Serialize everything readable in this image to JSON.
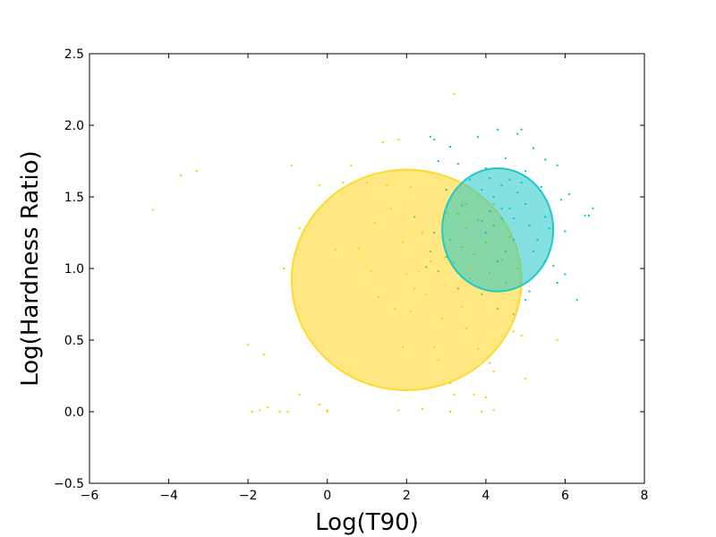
{
  "chart_data": {
    "type": "scatter",
    "xlabel": "Log(T90)",
    "ylabel": "Log(Hardness Ratio)",
    "xlim": [
      -6,
      8
    ],
    "ylim": [
      -0.5,
      2.5
    ],
    "xticks": [
      -6,
      -4,
      -2,
      0,
      2,
      4,
      6,
      8
    ],
    "xtick_labels": [
      "−6",
      "−4",
      "−2",
      "0",
      "2",
      "4",
      "6",
      "8"
    ],
    "yticks": [
      -0.5,
      0.0,
      0.5,
      1.0,
      1.5,
      2.0,
      2.5
    ],
    "ytick_labels": [
      "−0.5",
      "0.0",
      "0.5",
      "1.0",
      "1.5",
      "2.0",
      "2.5"
    ],
    "grid": false,
    "colors": {
      "yellow": "#ffcc00",
      "cyan": "#00c8c8",
      "green": "#66cc44",
      "yellow_fill": "#ffd92f",
      "cyan_fill": "#20c8c8"
    },
    "ellipses": [
      {
        "name": "yellow-cluster",
        "color_key": "yellow_fill",
        "cx": 2.0,
        "cy": 0.92,
        "rx": 2.9,
        "ry": 0.77,
        "opacity": 0.6
      },
      {
        "name": "cyan-cluster",
        "color_key": "cyan_fill",
        "cx": 4.3,
        "cy": 1.27,
        "rx": 1.4,
        "ry": 0.43,
        "opacity": 0.55
      }
    ],
    "series": [
      {
        "color_key": "yellow",
        "points": [
          [
            -4.4,
            1.41
          ],
          [
            -3.7,
            1.65
          ],
          [
            -3.3,
            1.68
          ],
          [
            -2.0,
            0.47
          ],
          [
            -1.9,
            0.0
          ],
          [
            -1.7,
            0.01
          ],
          [
            -1.6,
            0.4
          ],
          [
            -1.5,
            0.03
          ],
          [
            -1.2,
            0.0
          ],
          [
            -1.1,
            1.0
          ],
          [
            -1.0,
            0.0
          ],
          [
            -0.9,
            1.72
          ],
          [
            -0.8,
            1.1
          ],
          [
            -0.7,
            0.12
          ],
          [
            -0.7,
            1.28
          ],
          [
            -0.2,
            0.05
          ],
          [
            -0.2,
            1.58
          ],
          [
            0.0,
            0.01
          ],
          [
            0.0,
            0.0
          ],
          [
            0.2,
            1.13
          ],
          [
            0.4,
            1.6
          ],
          [
            0.6,
            1.72
          ],
          [
            0.8,
            1.14
          ],
          [
            1.0,
            1.6
          ],
          [
            1.1,
            0.98
          ],
          [
            1.2,
            1.32
          ],
          [
            1.3,
            0.8
          ],
          [
            1.4,
            1.88
          ],
          [
            1.5,
            1.58
          ],
          [
            1.6,
            1.42
          ],
          [
            1.7,
            0.72
          ],
          [
            1.8,
            0.01
          ],
          [
            1.8,
            1.9
          ],
          [
            1.9,
            1.18
          ],
          [
            1.9,
            0.45
          ],
          [
            2.0,
            0.96
          ],
          [
            2.1,
            0.7
          ],
          [
            2.1,
            1.57
          ],
          [
            2.2,
            0.86
          ],
          [
            2.3,
            0.98
          ],
          [
            2.4,
            1.25
          ],
          [
            2.4,
            0.02
          ],
          [
            2.5,
            0.82
          ],
          [
            2.6,
            1.05
          ],
          [
            2.7,
            0.45
          ],
          [
            2.8,
            0.36
          ],
          [
            2.9,
            0.65
          ],
          [
            3.1,
            0.2
          ],
          [
            3.1,
            0.0
          ],
          [
            3.2,
            0.12
          ],
          [
            3.2,
            2.22
          ],
          [
            3.4,
            0.73
          ],
          [
            3.5,
            0.58
          ],
          [
            3.6,
            1.0
          ],
          [
            3.7,
            0.12
          ],
          [
            3.8,
            0.44
          ],
          [
            3.9,
            0.0
          ],
          [
            4.0,
            0.1
          ],
          [
            4.1,
            0.34
          ],
          [
            4.2,
            0.28
          ],
          [
            4.2,
            0.01
          ],
          [
            4.7,
            0.56
          ],
          [
            4.9,
            0.53
          ],
          [
            5.0,
            0.23
          ],
          [
            5.8,
            0.5
          ]
        ]
      },
      {
        "color_key": "cyan",
        "points": [
          [
            2.6,
            1.92
          ],
          [
            2.7,
            1.9
          ],
          [
            2.8,
            1.75
          ],
          [
            3.0,
            1.55
          ],
          [
            3.1,
            1.85
          ],
          [
            3.3,
            1.73
          ],
          [
            3.4,
            1.44
          ],
          [
            3.6,
            1.62
          ],
          [
            3.8,
            1.92
          ],
          [
            3.9,
            1.55
          ],
          [
            4.0,
            1.7
          ],
          [
            4.1,
            1.63
          ],
          [
            4.2,
            1.5
          ],
          [
            4.3,
            1.97
          ],
          [
            4.4,
            1.58
          ],
          [
            4.4,
            1.35
          ],
          [
            4.5,
            1.77
          ],
          [
            4.6,
            1.42
          ],
          [
            4.6,
            1.62
          ],
          [
            4.7,
            1.2
          ],
          [
            4.8,
            1.53
          ],
          [
            4.8,
            1.94
          ],
          [
            4.9,
            1.97
          ],
          [
            5.0,
            1.68
          ],
          [
            5.0,
            1.45
          ],
          [
            5.1,
            1.3
          ],
          [
            5.2,
            1.84
          ],
          [
            5.2,
            1.12
          ],
          [
            5.3,
            1.2
          ],
          [
            5.4,
            1.57
          ],
          [
            5.5,
            1.36
          ],
          [
            5.5,
            1.76
          ],
          [
            5.6,
            1.28
          ],
          [
            5.7,
            1.02
          ],
          [
            5.8,
            1.72
          ],
          [
            5.9,
            1.48
          ],
          [
            6.0,
            1.26
          ],
          [
            6.0,
            0.96
          ],
          [
            6.1,
            1.52
          ],
          [
            6.3,
            0.78
          ],
          [
            6.5,
            1.37
          ],
          [
            6.6,
            1.37
          ],
          [
            6.7,
            1.42
          ],
          [
            5.0,
            0.78
          ],
          [
            5.1,
            0.84
          ],
          [
            5.8,
            0.9
          ],
          [
            5.5,
            1.05
          ],
          [
            4.9,
            1.6
          ],
          [
            4.7,
            1.35
          ],
          [
            4.5,
            1.12
          ],
          [
            4.4,
            1.42
          ],
          [
            4.3,
            1.05
          ],
          [
            4.2,
            1.3
          ],
          [
            4.1,
            1.4
          ],
          [
            4.0,
            1.25
          ],
          [
            3.9,
            1.33
          ]
        ]
      },
      {
        "color_key": "green",
        "points": [
          [
            2.5,
            1.01
          ],
          [
            2.6,
            1.12
          ],
          [
            2.7,
            1.25
          ],
          [
            2.8,
            0.98
          ],
          [
            2.9,
            1.32
          ],
          [
            3.0,
            1.08
          ],
          [
            3.1,
            1.2
          ],
          [
            3.2,
            1.04
          ],
          [
            3.3,
            1.38
          ],
          [
            3.4,
            1.15
          ],
          [
            3.5,
            1.28
          ],
          [
            3.6,
            0.93
          ],
          [
            3.7,
            1.1
          ],
          [
            3.8,
            1.34
          ],
          [
            3.9,
            0.82
          ],
          [
            4.0,
            1.18
          ],
          [
            4.1,
            0.97
          ],
          [
            4.2,
            1.45
          ],
          [
            4.3,
            0.72
          ],
          [
            4.4,
            1.06
          ],
          [
            4.5,
            0.9
          ],
          [
            4.6,
            1.22
          ],
          [
            4.7,
            0.68
          ],
          [
            4.8,
            1.0
          ],
          [
            3.5,
            1.45
          ],
          [
            3.0,
            1.39
          ],
          [
            2.2,
            1.36
          ],
          [
            3.3,
            0.86
          ]
        ]
      }
    ]
  }
}
